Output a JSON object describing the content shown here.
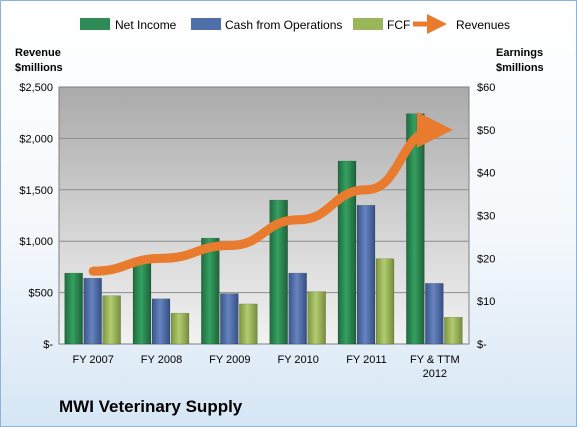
{
  "company_name": "MWI Veterinary Supply",
  "chart_data": {
    "type": "bar",
    "categories": [
      "FY 2007",
      "FY 2008",
      "FY 2009",
      "FY 2010",
      "FY 2011",
      "FY & TTM 2012"
    ],
    "left_axis_title": [
      "Revenue",
      "$millions"
    ],
    "right_axis_title": [
      "Earnings",
      "$millions"
    ],
    "left_axis": {
      "min": 0,
      "max": 2500,
      "step": 500,
      "tick_labels": [
        "$-",
        "$500",
        "$1,000",
        "$1,500",
        "$2,000",
        "$2,500"
      ]
    },
    "right_axis": {
      "min": 0,
      "max": 60,
      "step": 10,
      "tick_labels": [
        "$-",
        "$10",
        "$20",
        "$30",
        "$40",
        "$50",
        "$60"
      ]
    },
    "series": [
      {
        "name": "Net Income",
        "type": "bar",
        "axis": "left",
        "color": "#2e8b57",
        "values": [
          690,
          820,
          1030,
          1400,
          1780,
          2240
        ]
      },
      {
        "name": "Cash from Operations",
        "type": "bar",
        "axis": "left",
        "color": "#4f6faa",
        "values": [
          640,
          440,
          490,
          690,
          1350,
          590
        ]
      },
      {
        "name": "FCF",
        "type": "bar",
        "axis": "left",
        "color": "#9bb659",
        "values": [
          470,
          300,
          390,
          510,
          830,
          260
        ]
      },
      {
        "name": "Revenues",
        "type": "line-arrow",
        "axis": "right",
        "color": "#e87b2e",
        "values": [
          17,
          20,
          23,
          29,
          36,
          50
        ]
      }
    ],
    "legend_position": "top",
    "grid": true,
    "plot_background": "#b0b0b0"
  }
}
